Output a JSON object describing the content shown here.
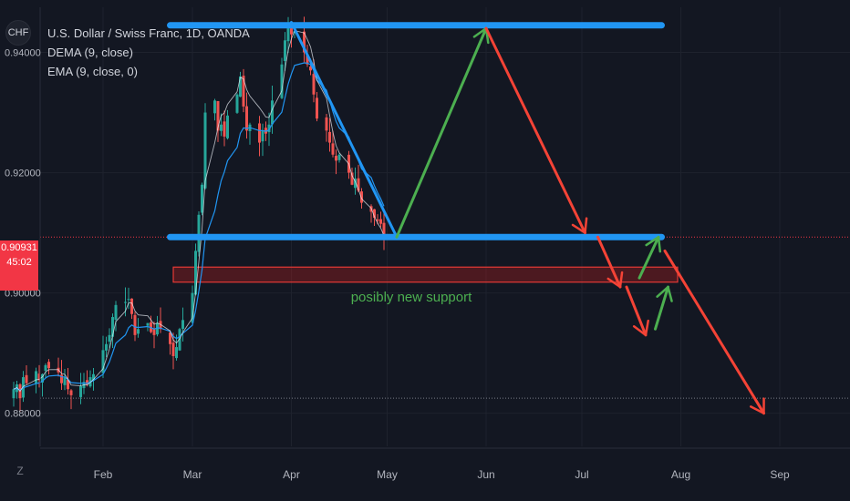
{
  "symbol_icon_text": "CHF",
  "legend": {
    "title": "U.S. Dollar / Swiss Franc, 1D, OANDA",
    "ind1": "DEMA (9, close)",
    "ind2": "EMA (9, close, 0)"
  },
  "price_tag": {
    "price": "0.90931",
    "countdown": "45:02"
  },
  "z_label": "Z",
  "annotation_text": "posibly new support",
  "colors": {
    "background": "#131722",
    "up": "#26a69a",
    "down": "#ef5350",
    "ema": "#2196f3",
    "dema": "#f0f3fa",
    "blue_drawing": "#2196f3",
    "green_arrow": "#4caf50",
    "red_arrow": "#f44336",
    "support_zone": "#b71c1c",
    "price_badge": "#f23645"
  },
  "chart_data": {
    "type": "candlestick",
    "ylim": [
      0.8745,
      0.9475
    ],
    "y_ticks": [
      0.88,
      0.9,
      0.92,
      0.94
    ],
    "y_tick_labels": [
      "0.88000",
      "0.90000",
      "0.92000",
      "0.94000"
    ],
    "x_ticks": [
      "Feb",
      "Mar",
      "Apr",
      "May",
      "Jun",
      "Jul",
      "Aug",
      "Sep"
    ],
    "x_tick_dates": [
      "2021-02-01",
      "2021-03-01",
      "2021-04-01",
      "2021-05-01",
      "2021-06-01",
      "2021-07-01",
      "2021-08-01",
      "2021-09-01"
    ],
    "grid": true,
    "dotted_levels": [
      0.9093,
      0.8825
    ],
    "last_price": 0.90931,
    "closes": [
      [
        "2021-01-04",
        0.884
      ],
      [
        "2021-01-05",
        0.8848
      ],
      [
        "2021-01-06",
        0.8825
      ],
      [
        "2021-01-07",
        0.886
      ],
      [
        "2021-01-08",
        0.885
      ],
      [
        "2021-01-11",
        0.887
      ],
      [
        "2021-01-12",
        0.8855
      ],
      [
        "2021-01-13",
        0.8865
      ],
      [
        "2021-01-14",
        0.888
      ],
      [
        "2021-01-15",
        0.8875
      ],
      [
        "2021-01-18",
        0.8868
      ],
      [
        "2021-01-19",
        0.885
      ],
      [
        "2021-01-20",
        0.886
      ],
      [
        "2021-01-21",
        0.884
      ],
      [
        "2021-01-22",
        0.883
      ],
      [
        "2021-01-25",
        0.8845
      ],
      [
        "2021-01-26",
        0.8852
      ],
      [
        "2021-01-27",
        0.8848
      ],
      [
        "2021-01-28",
        0.886
      ],
      [
        "2021-01-29",
        0.8865
      ],
      [
        "2021-02-01",
        0.8905
      ],
      [
        "2021-02-02",
        0.8915
      ],
      [
        "2021-02-03",
        0.893
      ],
      [
        "2021-02-04",
        0.896
      ],
      [
        "2021-02-05",
        0.898
      ],
      [
        "2021-02-08",
        0.8985
      ],
      [
        "2021-02-09",
        0.899
      ],
      [
        "2021-02-10",
        0.8965
      ],
      [
        "2021-02-11",
        0.893
      ],
      [
        "2021-02-12",
        0.894
      ],
      [
        "2021-02-15",
        0.895
      ],
      [
        "2021-02-16",
        0.8935
      ],
      [
        "2021-02-17",
        0.893
      ],
      [
        "2021-02-18",
        0.895
      ],
      [
        "2021-02-19",
        0.894
      ],
      [
        "2021-02-22",
        0.8915
      ],
      [
        "2021-02-23",
        0.8895
      ],
      [
        "2021-02-24",
        0.891
      ],
      [
        "2021-02-25",
        0.894
      ],
      [
        "2021-02-26",
        0.8955
      ],
      [
        "2021-03-01",
        0.9
      ],
      [
        "2021-03-02",
        0.907
      ],
      [
        "2021-03-03",
        0.913
      ],
      [
        "2021-03-04",
        0.918
      ],
      [
        "2021-03-05",
        0.93
      ],
      [
        "2021-03-08",
        0.932
      ],
      [
        "2021-03-09",
        0.927
      ],
      [
        "2021-03-10",
        0.928
      ],
      [
        "2021-03-11",
        0.926
      ],
      [
        "2021-03-12",
        0.9295
      ],
      [
        "2021-03-15",
        0.933
      ],
      [
        "2021-03-16",
        0.936
      ],
      [
        "2021-03-17",
        0.931
      ],
      [
        "2021-03-18",
        0.927
      ],
      [
        "2021-03-19",
        0.928
      ],
      [
        "2021-03-22",
        0.925
      ],
      [
        "2021-03-23",
        0.927
      ],
      [
        "2021-03-24",
        0.9265
      ],
      [
        "2021-03-25",
        0.928
      ],
      [
        "2021-03-26",
        0.932
      ],
      [
        "2021-03-29",
        0.938
      ],
      [
        "2021-03-30",
        0.942
      ],
      [
        "2021-03-31",
        0.944
      ],
      [
        "2021-04-01",
        0.943
      ],
      [
        "2021-04-02",
        0.9435
      ],
      [
        "2021-04-05",
        0.94
      ],
      [
        "2021-04-06",
        0.938
      ],
      [
        "2021-04-07",
        0.937
      ],
      [
        "2021-04-08",
        0.933
      ],
      [
        "2021-04-09",
        0.929
      ],
      [
        "2021-04-12",
        0.927
      ],
      [
        "2021-04-13",
        0.925
      ],
      [
        "2021-04-14",
        0.923
      ],
      [
        "2021-04-15",
        0.922
      ],
      [
        "2021-04-16",
        0.923
      ],
      [
        "2021-04-19",
        0.92
      ],
      [
        "2021-04-20",
        0.918
      ],
      [
        "2021-04-21",
        0.919
      ],
      [
        "2021-04-22",
        0.917
      ],
      [
        "2021-04-23",
        0.915
      ],
      [
        "2021-04-26",
        0.9135
      ],
      [
        "2021-04-27",
        0.9125
      ],
      [
        "2021-04-28",
        0.912
      ],
      [
        "2021-04-29",
        0.9115
      ],
      [
        "2021-04-30",
        0.9095
      ]
    ],
    "drawings": [
      {
        "name": "resistance-line",
        "color": "blue",
        "points": [
          [
            "2021-02-22",
            0.9445
          ],
          [
            "2021-07-26",
            0.9445
          ]
        ]
      },
      {
        "name": "support-line",
        "color": "blue",
        "points": [
          [
            "2021-02-22",
            0.9093
          ],
          [
            "2021-07-26",
            0.9093
          ]
        ]
      },
      {
        "name": "decline-line",
        "color": "blue",
        "points": [
          [
            "2021-04-01",
            0.945
          ],
          [
            "2021-05-04",
            0.9093
          ]
        ]
      },
      {
        "name": "projected-rally-arrow",
        "color": "green",
        "points": [
          [
            "2021-05-04",
            0.9093
          ],
          [
            "2021-06-01",
            0.944
          ]
        ]
      },
      {
        "name": "projected-decline-arrow",
        "color": "red",
        "points": [
          [
            "2021-06-01",
            0.944
          ],
          [
            "2021-07-02",
            0.91
          ]
        ]
      },
      {
        "name": "projected-dip-arrow",
        "color": "red",
        "points": [
          [
            "2021-07-06",
            0.9093
          ],
          [
            "2021-07-13",
            0.901
          ]
        ]
      },
      {
        "name": "projected-dip-arrow-2",
        "color": "red",
        "points": [
          [
            "2021-07-15",
            0.901
          ],
          [
            "2021-07-21",
            0.893
          ]
        ]
      },
      {
        "name": "projected-bounce-arrow",
        "color": "green",
        "points": [
          [
            "2021-07-19",
            0.9025
          ],
          [
            "2021-07-25",
            0.9093
          ]
        ]
      },
      {
        "name": "projected-bounce-arrow-2",
        "color": "green",
        "points": [
          [
            "2021-07-24",
            0.894
          ],
          [
            "2021-07-28",
            0.901
          ]
        ]
      },
      {
        "name": "projected-breakdown-arrow",
        "color": "red",
        "points": [
          [
            "2021-07-27",
            0.907
          ],
          [
            "2021-08-27",
            0.88
          ]
        ]
      }
    ],
    "support_zone": {
      "from": "2021-02-23",
      "to": "2021-07-31",
      "y_low": 0.9018,
      "y_high": 0.9043
    }
  }
}
